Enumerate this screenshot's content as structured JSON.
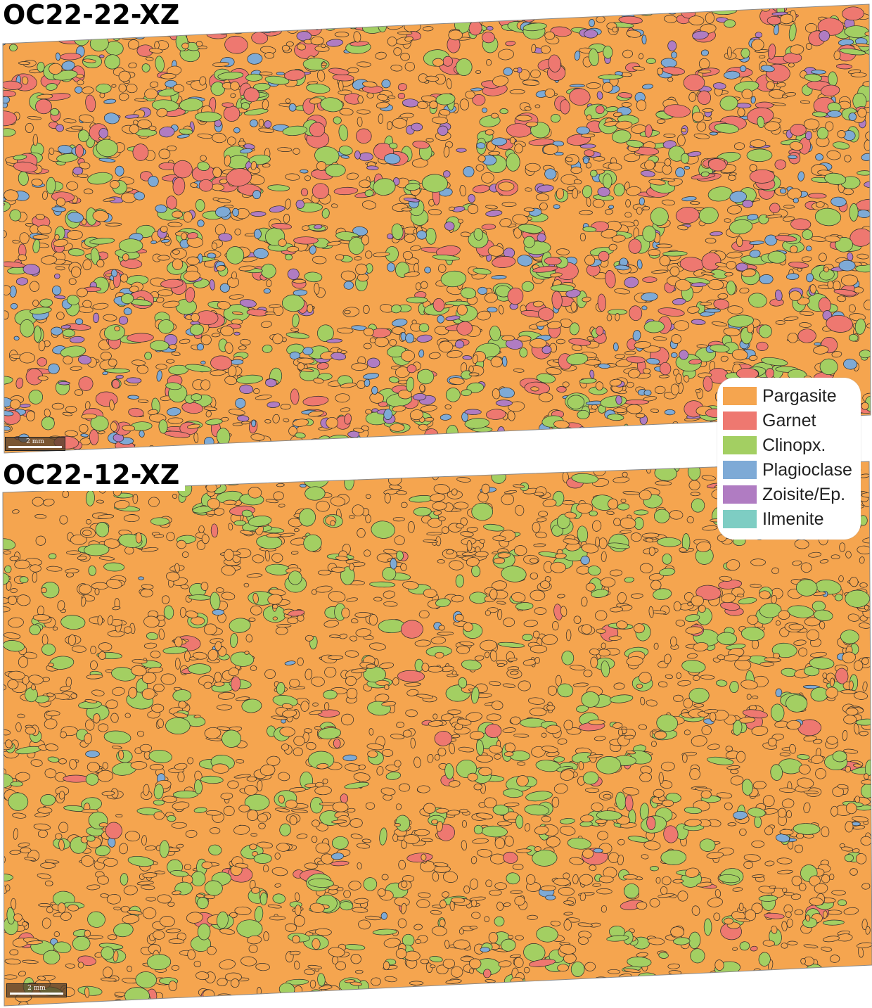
{
  "panels": [
    {
      "id": "top",
      "title": "OC22-22-XZ",
      "scale_label": "2 mm"
    },
    {
      "id": "bottom",
      "title": "OC22-12-XZ",
      "scale_label": "2 mm"
    }
  ],
  "legend": [
    {
      "label": "Pargasite",
      "color": "#f5a54f"
    },
    {
      "label": "Garnet",
      "color": "#ee7870"
    },
    {
      "label": "Clinopx.",
      "color": "#a3cf62"
    },
    {
      "label": "Plagioclase",
      "color": "#7eaad6"
    },
    {
      "label": "Zoisite/Ep.",
      "color": "#b07cc2"
    },
    {
      "label": "Ilmenite",
      "color": "#7ecdc3"
    }
  ],
  "phase_fractions": {
    "top": {
      "Pargasite": 0.48,
      "Garnet": 0.13,
      "Clinopx.": 0.19,
      "Plagioclase": 0.12,
      "Zoisite/Ep.": 0.08
    },
    "bottom": {
      "Pargasite": 0.76,
      "Garnet": 0.03,
      "Clinopx.": 0.2,
      "Plagioclase": 0.01
    }
  }
}
